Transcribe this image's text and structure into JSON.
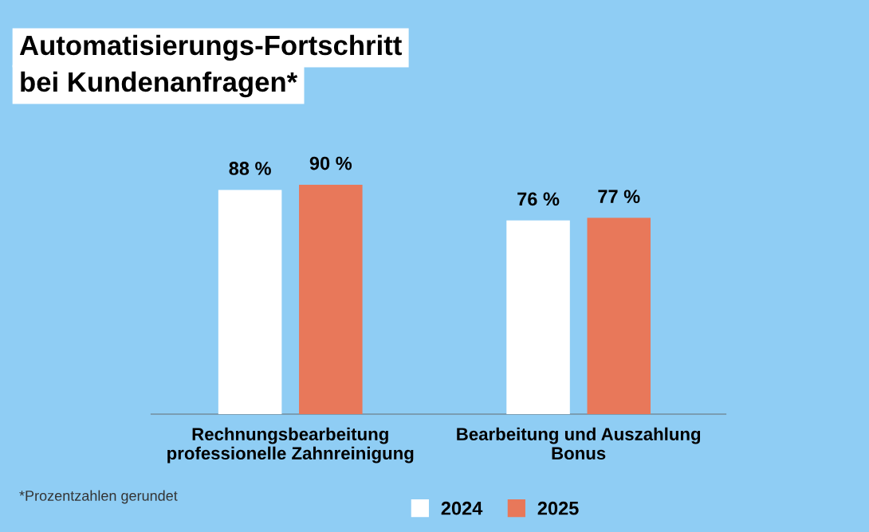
{
  "chart_data": {
    "type": "bar",
    "title": "Automatisierungs-Fortschritt\nbei Kundenanfragen*",
    "categories": [
      "Rechnungsbearbeitung\nprofessionelle Zahnreinigung",
      "Bearbeitung und Auszahlung\nBonus"
    ],
    "series": [
      {
        "name": "2024",
        "color": "#ffffff",
        "values": [
          88,
          76
        ],
        "value_labels": [
          "88 %",
          "76 %"
        ]
      },
      {
        "name": "2025",
        "color": "#e8785a",
        "values": [
          90,
          77
        ],
        "value_labels": [
          "90 %",
          "77 %"
        ]
      }
    ],
    "annotations": [
      "*Prozentzahlen gerundet"
    ],
    "legend": "bottom",
    "grid": false
  }
}
